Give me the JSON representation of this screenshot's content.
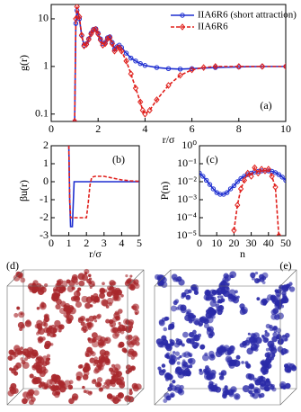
{
  "chart_data": [
    {
      "type": "line",
      "xlabel": "r/σ",
      "ylabel": "g(r)",
      "annotation": "(a)",
      "yscale": "log",
      "xlim": [
        0,
        10
      ],
      "xticks": [
        0,
        2,
        4,
        6,
        8,
        10
      ],
      "ylim": [
        0.07,
        20
      ],
      "yticks": [
        0.1,
        1,
        10
      ],
      "legend": "upper right",
      "series": [
        {
          "name": "IIA6R6 (short attraction)",
          "color": "#1f2fd0",
          "linestyle": "solid",
          "marker": "circle",
          "x": [
            1.0,
            1.05,
            1.1,
            1.2,
            1.3,
            1.4,
            1.5,
            1.6,
            1.7,
            1.8,
            1.9,
            2.0,
            2.1,
            2.2,
            2.3,
            2.4,
            2.5,
            2.6,
            2.7,
            2.8,
            2.9,
            3.0,
            3.2,
            3.4,
            3.6,
            3.8,
            4.0,
            4.5,
            5.0,
            5.5,
            6.0,
            7.0,
            8.0,
            9.0,
            10.0
          ],
          "values": [
            0.07,
            8,
            15,
            10,
            4.5,
            2.8,
            3,
            3.8,
            5,
            6,
            6.2,
            5,
            3.8,
            3,
            3.2,
            4,
            4.2,
            3.2,
            2.3,
            2.6,
            2.8,
            2.5,
            1.9,
            1.5,
            1.3,
            1.15,
            1.05,
            0.95,
            0.9,
            0.88,
            0.9,
            0.95,
            0.98,
            1.0,
            1.0
          ]
        },
        {
          "name": "IIA6R6",
          "color": "#e0201c",
          "linestyle": "dashed",
          "marker": "diamond",
          "x": [
            1.0,
            1.05,
            1.1,
            1.2,
            1.3,
            1.4,
            1.5,
            1.6,
            1.7,
            1.8,
            1.9,
            2.0,
            2.1,
            2.2,
            2.3,
            2.4,
            2.5,
            2.6,
            2.7,
            2.8,
            2.9,
            3.0,
            3.2,
            3.4,
            3.6,
            3.8,
            3.9,
            4.0,
            4.2,
            4.5,
            5.0,
            5.5,
            6.0,
            6.5,
            7.0,
            8.0,
            9.0,
            10.0
          ],
          "values": [
            0.07,
            10,
            18,
            11,
            4.5,
            2.7,
            2.9,
            3.7,
            4.8,
            5.8,
            6,
            4.8,
            3.6,
            2.8,
            3,
            3.8,
            4,
            3,
            2.1,
            2.4,
            2.5,
            2.1,
            1.3,
            0.7,
            0.35,
            0.18,
            0.12,
            0.1,
            0.12,
            0.2,
            0.4,
            0.65,
            0.85,
            0.95,
            1.0,
            1.0,
            1.0,
            1.0
          ]
        }
      ]
    },
    {
      "type": "line",
      "xlabel": "r/σ",
      "ylabel": "βu(r)",
      "annotation": "(b)",
      "xlim": [
        0,
        5
      ],
      "xticks": [
        0,
        1,
        2,
        3,
        4,
        5
      ],
      "ylim": [
        -3,
        2
      ],
      "yticks": [
        -3,
        -2,
        -1,
        0,
        1,
        2
      ],
      "series": [
        {
          "color": "#1f2fd0",
          "linestyle": "solid",
          "x": [
            1.0,
            1.05,
            1.1,
            1.2,
            1.3,
            1.5,
            2,
            3,
            4,
            5
          ],
          "values": [
            2,
            -1,
            -2.5,
            -2.5,
            0,
            0,
            0,
            0,
            0,
            0
          ]
        },
        {
          "color": "#e0201c",
          "linestyle": "dashed",
          "x": [
            1.0,
            1.05,
            1.1,
            1.5,
            2.0,
            2.1,
            2.2,
            2.3,
            2.5,
            3.0,
            3.5,
            4,
            4.5,
            5
          ],
          "values": [
            2,
            -1,
            -2,
            -2,
            -2,
            -1.2,
            -0.2,
            0.25,
            0.3,
            0.3,
            0.2,
            0.1,
            0.05,
            0.02
          ]
        }
      ]
    },
    {
      "type": "line",
      "xlabel": "n",
      "ylabel": "P(n)",
      "annotation": "(c)",
      "yscale": "log",
      "xlim": [
        0,
        50
      ],
      "xticks": [
        0,
        10,
        20,
        30,
        40,
        50
      ],
      "ylim": [
        1e-05,
        1
      ],
      "yticks": [
        {
          "value": 1e-05,
          "label": "10⁻⁵"
        },
        {
          "value": 0.0001,
          "label": "10⁻⁴"
        },
        {
          "value": 0.001,
          "label": "10⁻³"
        },
        {
          "value": 0.01,
          "label": "10⁻²"
        },
        {
          "value": 0.1,
          "label": "10⁻¹"
        },
        {
          "value": 1,
          "label": "10⁰"
        }
      ],
      "series": [
        {
          "color": "#1f2fd0",
          "linestyle": "solid",
          "marker": "circle",
          "x": [
            0,
            2,
            4,
            6,
            8,
            10,
            12,
            14,
            16,
            18,
            20,
            22,
            24,
            26,
            28,
            30,
            32,
            34,
            36,
            38,
            40,
            42,
            44,
            46,
            48,
            50
          ],
          "values": [
            0.03,
            0.02,
            0.012,
            0.007,
            0.004,
            0.0025,
            0.002,
            0.002,
            0.0025,
            0.004,
            0.006,
            0.01,
            0.015,
            0.02,
            0.025,
            0.03,
            0.035,
            0.038,
            0.04,
            0.04,
            0.04,
            0.038,
            0.032,
            0.025,
            0.018,
            0.012
          ]
        },
        {
          "color": "#e0201c",
          "linestyle": "dashed",
          "marker": "diamond",
          "x": [
            0,
            2,
            4,
            6,
            8,
            10,
            12,
            14,
            16,
            18,
            20,
            22,
            24,
            26,
            28,
            30,
            32,
            34,
            36,
            38,
            40,
            42,
            44,
            46,
            48,
            50
          ],
          "values": [
            null,
            null,
            null,
            null,
            null,
            null,
            null,
            null,
            null,
            null,
            2e-05,
            0.0005,
            0.004,
            0.012,
            0.03,
            0.02,
            0.06,
            0.03,
            0.05,
            0.04,
            0.05,
            0.02,
            0.005,
            1e-05,
            null,
            null
          ]
        }
      ]
    },
    {
      "type": "render",
      "annotation": "(d)",
      "color": "#a8282c"
    },
    {
      "type": "render",
      "annotation": "(e)",
      "color": "#2a2aa8"
    }
  ]
}
